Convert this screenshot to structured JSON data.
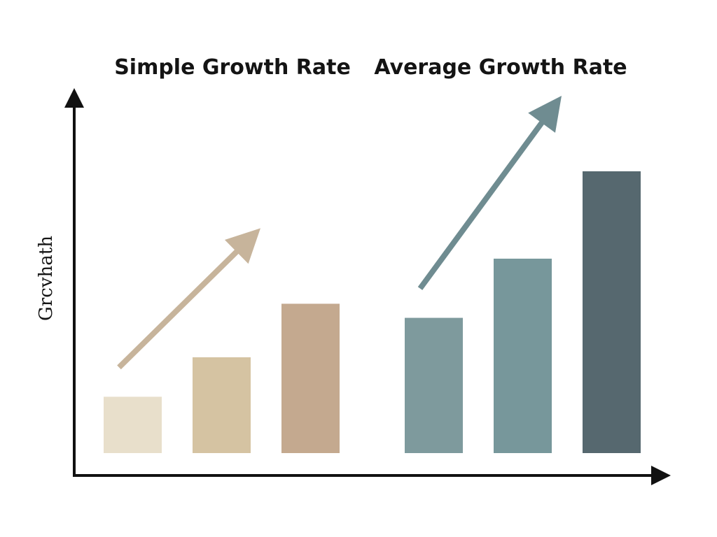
{
  "chart_data": {
    "type": "bar",
    "ylabel": "Grcvhath",
    "xlabel": "",
    "ylim": [
      0,
      100
    ],
    "groups": [
      {
        "title": "Simple Growth Rate",
        "values": [
          20,
          34,
          53
        ],
        "colors": [
          "#e8dfcb",
          "#d5c3a2",
          "#c4a98f"
        ],
        "trend_color": "#c7b49b"
      },
      {
        "title": "Average Growth Rate",
        "values": [
          48,
          69,
          100
        ],
        "colors": [
          "#7e9a9d",
          "#77979b",
          "#56686f"
        ],
        "trend_color": "#6f8c91"
      }
    ]
  }
}
